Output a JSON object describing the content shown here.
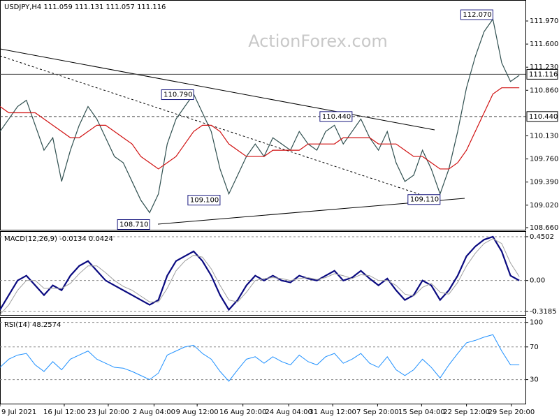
{
  "watermark": "ActionForex.com",
  "chart_data": [
    {
      "type": "line",
      "title": "USDJPY,H4  111.059 111.131 111.057 111.116",
      "xlim": [
        0,
        59.7
      ],
      "ylim": [
        108.615,
        112.306
      ],
      "yticks": [
        {
          "value": 108.66,
          "label": "108.660"
        },
        {
          "value": 109.02,
          "label": "109.020"
        },
        {
          "value": 109.39,
          "label": "109.390"
        },
        {
          "value": 109.76,
          "label": "109.760"
        },
        {
          "value": 110.13,
          "label": "110.130"
        },
        {
          "value": 110.86,
          "label": "110.860"
        },
        {
          "value": 111.23,
          "label": "111.230"
        },
        {
          "value": 111.6,
          "label": "111.600"
        },
        {
          "value": 111.97,
          "label": "111.970"
        }
      ],
      "x": [
        0,
        1,
        2,
        3,
        4,
        5,
        6,
        7,
        8,
        9,
        10,
        11,
        12,
        13,
        14,
        15,
        16,
        17,
        18,
        19,
        20,
        21,
        22,
        23,
        24,
        25,
        26,
        27,
        28,
        29,
        30,
        31,
        32,
        33,
        34,
        35,
        36,
        37,
        38,
        39,
        40,
        41,
        42,
        43,
        44,
        45,
        46,
        47,
        48,
        49,
        50,
        51,
        52,
        53,
        54,
        55,
        56,
        57,
        58,
        59
      ],
      "series": [
        {
          "color": "#2f4f4f",
          "values": [
            110.2,
            110.4,
            110.6,
            110.7,
            110.3,
            109.9,
            110.1,
            109.4,
            109.9,
            110.3,
            110.6,
            110.4,
            110.1,
            109.8,
            109.7,
            109.4,
            109.1,
            108.9,
            109.2,
            110.0,
            110.4,
            110.6,
            110.8,
            110.5,
            110.2,
            109.6,
            109.2,
            109.5,
            109.8,
            110.0,
            109.8,
            110.1,
            110.0,
            109.9,
            110.2,
            110.0,
            109.9,
            110.2,
            110.3,
            110.0,
            110.2,
            110.4,
            110.1,
            109.9,
            110.2,
            109.7,
            109.4,
            109.5,
            109.9,
            109.6,
            109.2,
            109.6,
            110.2,
            110.9,
            111.4,
            111.8,
            112.0,
            111.3,
            111.0,
            111.1
          ]
        },
        {
          "color": "#d01010",
          "values": [
            110.6,
            110.5,
            110.5,
            110.5,
            110.5,
            110.4,
            110.3,
            110.2,
            110.1,
            110.1,
            110.2,
            110.3,
            110.3,
            110.2,
            110.1,
            110.0,
            109.8,
            109.7,
            109.6,
            109.7,
            109.8,
            110.0,
            110.2,
            110.3,
            110.3,
            110.2,
            110.0,
            109.9,
            109.8,
            109.8,
            109.8,
            109.9,
            109.9,
            109.9,
            109.9,
            110.0,
            110.0,
            110.0,
            110.0,
            110.1,
            110.1,
            110.1,
            110.1,
            110.0,
            110.0,
            110.0,
            109.9,
            109.8,
            109.8,
            109.7,
            109.6,
            109.6,
            109.7,
            109.9,
            110.2,
            110.5,
            110.8,
            110.9,
            110.9,
            110.9
          ]
        }
      ],
      "levels": [
        {
          "value": 110.44,
          "label": "110.440",
          "style": "dashed"
        },
        {
          "value": 111.116,
          "label": "111.116",
          "style": "solid"
        }
      ],
      "annotations": [
        {
          "x": 56,
          "value": 112.07,
          "label": "112.070"
        },
        {
          "x": 22,
          "value": 110.79,
          "label": "110.790"
        },
        {
          "x": 40,
          "value": 110.44,
          "label": "110.440"
        },
        {
          "x": 25,
          "value": 109.1,
          "label": "109.100"
        },
        {
          "x": 17,
          "value": 108.71,
          "label": "108.710"
        },
        {
          "x": 50,
          "value": 109.11,
          "label": "109.110"
        }
      ]
    },
    {
      "type": "line",
      "title": "MACD(12,26,9) -0.0134 0.0424",
      "xlim": [
        0,
        59.7
      ],
      "ylim": [
        -0.361,
        0.5
      ],
      "grid": true,
      "yticks": [
        -0.3185,
        {
          "value": 0,
          "label": "0.00"
        },
        0.4502
      ],
      "x": [
        0,
        1,
        2,
        3,
        4,
        5,
        6,
        7,
        8,
        9,
        10,
        11,
        12,
        13,
        14,
        15,
        16,
        17,
        18,
        19,
        20,
        21,
        22,
        23,
        24,
        25,
        26,
        27,
        28,
        29,
        30,
        31,
        32,
        33,
        34,
        35,
        36,
        37,
        38,
        39,
        40,
        41,
        42,
        43,
        44,
        45,
        46,
        47,
        48,
        49,
        50,
        51,
        52,
        53,
        54,
        55,
        56,
        57,
        58,
        59
      ],
      "series": [
        {
          "color": "#0a0a80",
          "width": 2.2,
          "values": [
            -0.3,
            -0.15,
            0.0,
            0.05,
            -0.05,
            -0.15,
            -0.05,
            -0.1,
            0.05,
            0.15,
            0.2,
            0.1,
            0.0,
            -0.05,
            -0.1,
            -0.15,
            -0.2,
            -0.25,
            -0.2,
            0.05,
            0.2,
            0.25,
            0.3,
            0.2,
            0.05,
            -0.15,
            -0.3,
            -0.2,
            -0.05,
            0.05,
            0.0,
            0.05,
            0.0,
            -0.02,
            0.05,
            0.02,
            0.0,
            0.05,
            0.1,
            0.0,
            0.03,
            0.1,
            0.02,
            -0.05,
            0.02,
            -0.1,
            -0.2,
            -0.15,
            0.0,
            -0.05,
            -0.2,
            -0.1,
            0.05,
            0.25,
            0.35,
            0.42,
            0.45,
            0.3,
            0.05,
            0.0
          ]
        },
        {
          "color": "#a0a0a0",
          "width": 1,
          "values": [
            -0.35,
            -0.25,
            -0.1,
            0.0,
            0.0,
            -0.08,
            -0.08,
            -0.08,
            -0.03,
            0.07,
            0.15,
            0.15,
            0.08,
            0.0,
            -0.06,
            -0.1,
            -0.16,
            -0.22,
            -0.22,
            -0.08,
            0.1,
            0.2,
            0.26,
            0.24,
            0.12,
            -0.05,
            -0.2,
            -0.22,
            -0.12,
            0.0,
            0.02,
            0.03,
            0.02,
            0.0,
            0.02,
            0.03,
            0.01,
            0.03,
            0.07,
            0.05,
            0.02,
            0.06,
            0.05,
            0.0,
            0.0,
            -0.05,
            -0.14,
            -0.16,
            -0.07,
            -0.03,
            -0.12,
            -0.14,
            -0.02,
            0.15,
            0.28,
            0.38,
            0.43,
            0.38,
            0.18,
            0.04
          ]
        }
      ]
    },
    {
      "type": "line",
      "title": "RSI(14) 48.2574",
      "xlim": [
        0,
        59.7
      ],
      "ylim": [
        0.6,
        105.7
      ],
      "grid": true,
      "yticks": [
        30,
        70,
        100
      ],
      "x": [
        0,
        1,
        2,
        3,
        4,
        5,
        6,
        7,
        8,
        9,
        10,
        11,
        12,
        13,
        14,
        15,
        16,
        17,
        18,
        19,
        20,
        21,
        22,
        23,
        24,
        25,
        26,
        27,
        28,
        29,
        30,
        31,
        32,
        33,
        34,
        35,
        36,
        37,
        38,
        39,
        40,
        41,
        42,
        43,
        44,
        45,
        46,
        47,
        48,
        49,
        50,
        51,
        52,
        53,
        54,
        55,
        56,
        57,
        58,
        59
      ],
      "xticks": [
        {
          "value": 0,
          "label": "9 Jul 2021"
        },
        {
          "value": 7.3,
          "label": "16 Jul 12:00"
        },
        {
          "value": 12.3,
          "label": "23 Jul 20:00"
        },
        {
          "value": 17.5,
          "label": "2 Aug 04:00"
        },
        {
          "value": 22.4,
          "label": "9 Aug 12:00"
        },
        {
          "value": 27.6,
          "label": "16 Aug 20:00"
        },
        {
          "value": 32.8,
          "label": "24 Aug 04:00"
        },
        {
          "value": 37.8,
          "label": "31 Aug 12:00"
        },
        {
          "value": 42.9,
          "label": "7 Sep 20:00"
        },
        {
          "value": 47.9,
          "label": "15 Sep 04:00"
        },
        {
          "value": 53,
          "label": "22 Sep 12:00"
        },
        {
          "value": 58.1,
          "label": "29 Sep 20:00"
        }
      ],
      "series": [
        {
          "color": "#1e90ff",
          "width": 1,
          "values": [
            45,
            55,
            60,
            62,
            48,
            40,
            52,
            42,
            55,
            60,
            65,
            55,
            50,
            45,
            44,
            40,
            35,
            30,
            38,
            60,
            65,
            70,
            72,
            62,
            55,
            40,
            28,
            42,
            55,
            58,
            50,
            58,
            52,
            48,
            60,
            52,
            48,
            58,
            62,
            50,
            55,
            62,
            50,
            45,
            58,
            42,
            35,
            42,
            55,
            45,
            32,
            48,
            62,
            75,
            78,
            82,
            85,
            65,
            48,
            48
          ]
        }
      ]
    }
  ]
}
